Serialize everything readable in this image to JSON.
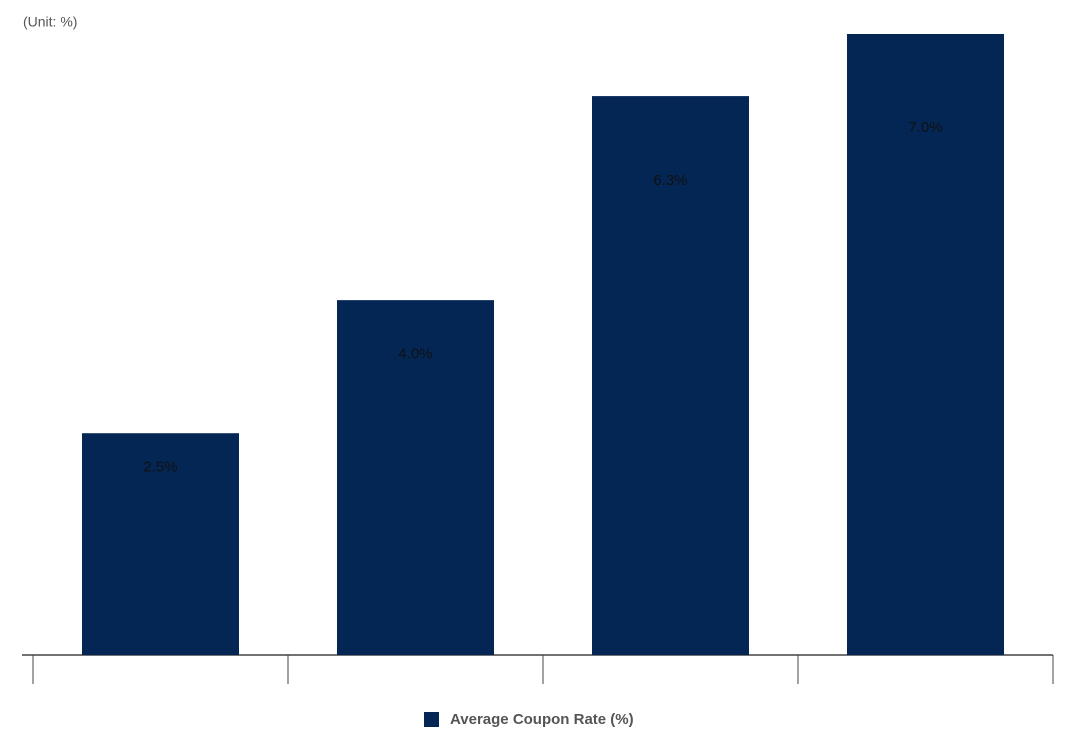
{
  "chart_data": {
    "type": "bar",
    "subtitle": "(Unit: %)",
    "categories": [
      null,
      null,
      null,
      null
    ],
    "series": [
      {
        "name": "Average Coupon Rate (%)",
        "color": "#032655",
        "values": [
          2.5,
          4.0,
          6.3,
          7.0
        ],
        "value_labels": [
          "2.5%",
          "4.0%",
          "6.3%",
          "7.0%"
        ]
      }
    ],
    "ylim": [
      0,
      7.0
    ],
    "grid": false,
    "legend": "bottom"
  }
}
